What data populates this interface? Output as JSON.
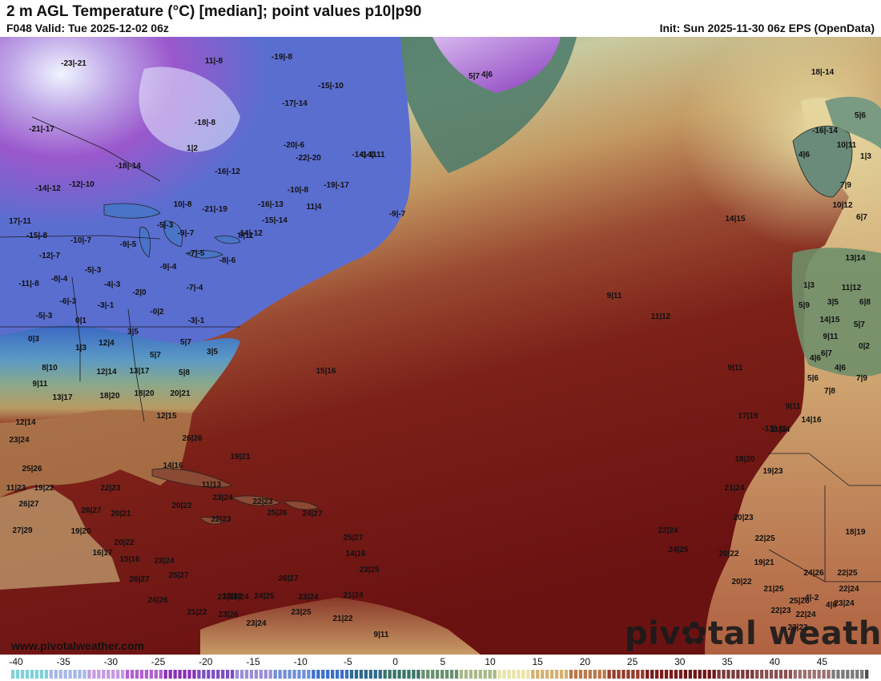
{
  "header": {
    "title": "2 m AGL Temperature (°C) [median]; point values p10|p90",
    "valid": "F048 Valid: Tue 2025-12-02 06z",
    "init": "Init: Sun 2025-11-30 06z EPS (OpenData)"
  },
  "footer": {
    "website": "www.pivotalweather.com",
    "logo_left": "piv",
    "logo_right": "tal weather"
  },
  "colorbar": {
    "ticks": [
      "-40",
      "-35",
      "-30",
      "-25",
      "-20",
      "-15",
      "-10",
      "-5",
      "0",
      "5",
      "10",
      "15",
      "20",
      "25",
      "30",
      "35",
      "40",
      "45"
    ],
    "colors": [
      "#7fd1d8",
      "#a6b8e6",
      "#c49ae0",
      "#b25fd1",
      "#8a2fb8",
      "#7a4fc0",
      "#9a8fd8",
      "#6f8fd8",
      "#3d6fc8",
      "#2e6a8c",
      "#3a7468",
      "#6a9070",
      "#a8b888",
      "#e8e4a8",
      "#d4b070",
      "#b87848",
      "#963c2c",
      "#7c1c1a",
      "#6e1616",
      "#7a3a3a",
      "#8a5050",
      "#9a7070",
      "#7a7a7a",
      "#505050"
    ]
  },
  "points": [
    {
      "t": "-23|-21"
    },
    {
      "t": "11|-8"
    },
    {
      "t": "-19|-8"
    },
    {
      "t": "-15|-10"
    },
    {
      "t": "-17|-14"
    },
    {
      "t": "-18|-8"
    },
    {
      "t": "-21|-17"
    },
    {
      "t": "-20|-6"
    },
    {
      "t": "-18|-14"
    },
    {
      "t": "-16|-12"
    },
    {
      "t": "-22|-20"
    },
    {
      "t": "-14|-11"
    },
    {
      "t": "-14|-11"
    },
    {
      "t": "-14|-12"
    },
    {
      "t": "-12|-10"
    },
    {
      "t": "-19|-17"
    },
    {
      "t": "-10|-8"
    },
    {
      "t": "10|-8"
    },
    {
      "t": "-21|-19"
    },
    {
      "t": "-16|-13"
    },
    {
      "t": "-15|-14"
    },
    {
      "t": "17|-11"
    },
    {
      "t": "-15|-8"
    },
    {
      "t": "-10|-7"
    },
    {
      "t": "-9|-5"
    },
    {
      "t": "-5|-3"
    },
    {
      "t": "-9|-7"
    },
    {
      "t": "-14|-12"
    },
    {
      "t": "-12|-7"
    },
    {
      "t": "-5|-3"
    },
    {
      "t": "-7|-5"
    },
    {
      "t": "-8|-6"
    },
    {
      "t": "-11|-8"
    },
    {
      "t": "-8|-4"
    },
    {
      "t": "-4|-3"
    },
    {
      "t": "-9|-4"
    },
    {
      "t": "-6|-3"
    },
    {
      "t": "-3|-1"
    },
    {
      "t": "-2|0"
    },
    {
      "t": "-7|-4"
    },
    {
      "t": "-5|-3"
    },
    {
      "t": "0|1"
    },
    {
      "t": "-0|2"
    },
    {
      "t": "-3|-1"
    },
    {
      "t": "0|3"
    },
    {
      "t": "1|3"
    },
    {
      "t": "12|4"
    },
    {
      "t": "3|5"
    },
    {
      "t": "8|10"
    },
    {
      "t": "5|7"
    },
    {
      "t": "3|5"
    },
    {
      "t": "5|7"
    },
    {
      "t": "12|14"
    },
    {
      "t": "13|17"
    },
    {
      "t": "5|8"
    },
    {
      "t": "9|11"
    },
    {
      "t": "13|17"
    },
    {
      "t": "18|20"
    },
    {
      "t": "18|20"
    },
    {
      "t": "20|21"
    },
    {
      "t": "12|15"
    },
    {
      "t": "12|14"
    },
    {
      "t": "23|24"
    },
    {
      "t": "26|26"
    },
    {
      "t": "19|21"
    },
    {
      "t": "25|26"
    },
    {
      "t": "14|16"
    },
    {
      "t": "19|22"
    },
    {
      "t": "11|23"
    },
    {
      "t": "22|23"
    },
    {
      "t": "11|13"
    },
    {
      "t": "26|27"
    },
    {
      "t": "26|27"
    },
    {
      "t": "20|22"
    },
    {
      "t": "23|24"
    },
    {
      "t": "22|23"
    },
    {
      "t": "25|26"
    },
    {
      "t": "20|21"
    },
    {
      "t": "22|23"
    },
    {
      "t": "24|27"
    },
    {
      "t": "27|29"
    },
    {
      "t": "19|20"
    },
    {
      "t": "20|22"
    },
    {
      "t": "16|17"
    },
    {
      "t": "15|16"
    },
    {
      "t": "23|24"
    },
    {
      "t": "25|27"
    },
    {
      "t": "26|27"
    },
    {
      "t": "26|27"
    },
    {
      "t": "23|24"
    },
    {
      "t": "23|24"
    },
    {
      "t": "25|27"
    },
    {
      "t": "14|16"
    },
    {
      "t": "23|25"
    },
    {
      "t": "24|26"
    },
    {
      "t": "16|18"
    },
    {
      "t": "24|25"
    },
    {
      "t": "23|24"
    },
    {
      "t": "21|24"
    },
    {
      "t": "21|22"
    },
    {
      "t": "23|26"
    },
    {
      "t": "23|24"
    },
    {
      "t": "23|25"
    },
    {
      "t": "21|22"
    },
    {
      "t": "9|11"
    },
    {
      "t": "15|16"
    },
    {
      "t": "14|15"
    },
    {
      "t": "9|11"
    },
    {
      "t": "11|12"
    },
    {
      "t": "9|11"
    },
    {
      "t": "17|19"
    },
    {
      "t": "11|14"
    },
    {
      "t": "18|20"
    },
    {
      "t": "19|23"
    },
    {
      "t": "21|24"
    },
    {
      "t": "20|23"
    },
    {
      "t": "22|24"
    },
    {
      "t": "24|25"
    },
    {
      "t": "22|25"
    },
    {
      "t": "20|22"
    },
    {
      "t": "19|21"
    },
    {
      "t": "24|26"
    },
    {
      "t": "18|19"
    },
    {
      "t": "20|22"
    },
    {
      "t": "21|25"
    },
    {
      "t": "22|25"
    },
    {
      "t": "25|26"
    },
    {
      "t": "22|24"
    },
    {
      "t": "22|23"
    },
    {
      "t": "22|23"
    },
    {
      "t": "23|24"
    },
    {
      "t": "22|24"
    },
    {
      "t": "4|8"
    },
    {
      "t": "-4|-2"
    },
    {
      "t": "18|-14"
    },
    {
      "t": "5|7"
    },
    {
      "t": "4|6"
    },
    {
      "t": "5|6"
    },
    {
      "t": "4|6"
    },
    {
      "t": "1|3"
    },
    {
      "t": "10|11"
    },
    {
      "t": "7|9"
    },
    {
      "t": "10|12"
    },
    {
      "t": "6|7"
    },
    {
      "t": "13|14"
    },
    {
      "t": "1|3"
    },
    {
      "t": "11|12"
    },
    {
      "t": "5|9"
    },
    {
      "t": "3|5"
    },
    {
      "t": "6|8"
    },
    {
      "t": "14|15"
    },
    {
      "t": "9|11"
    },
    {
      "t": "5|7"
    },
    {
      "t": "6|7"
    },
    {
      "t": "0|2"
    },
    {
      "t": "4|6"
    },
    {
      "t": "4|6"
    },
    {
      "t": "5|6"
    },
    {
      "t": "7|8"
    },
    {
      "t": "7|9"
    },
    {
      "t": "9|11"
    },
    {
      "t": "14|16"
    },
    {
      "t": "-13|-11"
    },
    {
      "t": "-16|-14"
    },
    {
      "t": "1|2"
    },
    {
      "t": "11|4"
    },
    {
      "t": "-9|-7"
    },
    {
      "t": "8|11"
    }
  ]
}
